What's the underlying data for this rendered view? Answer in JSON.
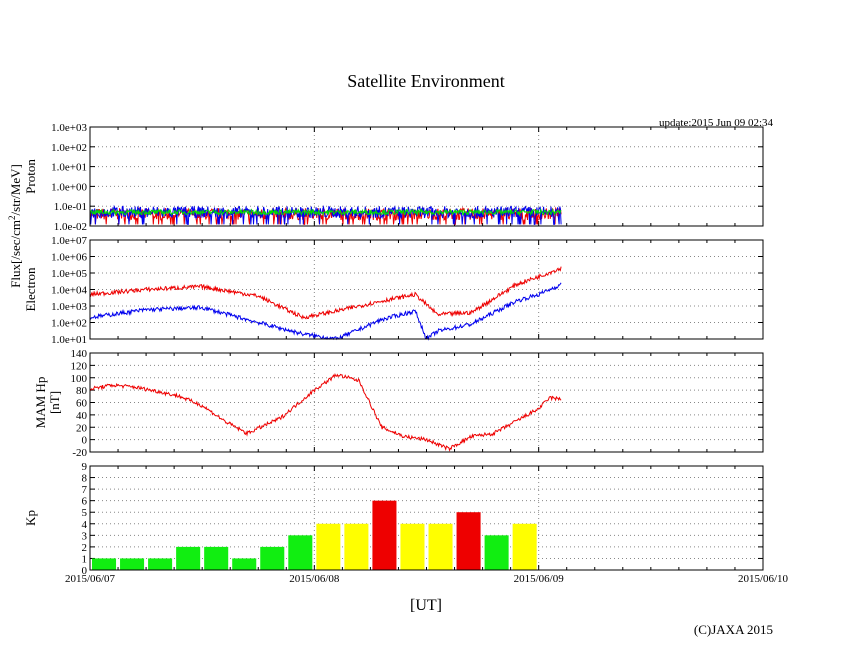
{
  "title": "Satellite Environment",
  "update": "update:2015 Jun 09 02:34",
  "xlabel": "[UT]",
  "copyright": "(C)JAXA 2015",
  "flux_label_parts": {
    "prefix": "Flux[/sec/cm",
    "sup": "2",
    "suffix": "/str/MeV]"
  },
  "x_ticks": [
    "2015/06/07",
    "2015/06/08",
    "2015/06/09",
    "2015/06/10"
  ],
  "colors": {
    "red": "#ee0000",
    "blue": "#0000ee",
    "green": "#00dd00",
    "green_bar": "#11ee11",
    "yellow": "#ffff00",
    "red_bar": "#ee0000",
    "grid": "#888888"
  },
  "chart_data": [
    {
      "id": "proton",
      "type": "line",
      "ylabel": "Proton",
      "yscale": "log",
      "ylim": [
        0.01,
        1000
      ],
      "y_ticks": [
        "1.0e-02",
        "1.0e-01",
        "1.0e+00",
        "1.0e+01",
        "1.0e+02",
        "1.0e+03"
      ],
      "xlim_days": [
        0,
        3
      ],
      "series": [
        {
          "color": "red",
          "approx_level": 0.04,
          "x_end_days": 2.1
        },
        {
          "color": "blue",
          "approx_level": 0.05,
          "x_end_days": 2.1
        },
        {
          "color": "green",
          "approx_level": 0.05,
          "x_end_days": 2.1
        }
      ]
    },
    {
      "id": "electron",
      "type": "line",
      "ylabel": "Electron",
      "yscale": "log",
      "ylim": [
        10,
        10000000
      ],
      "y_ticks": [
        "1.0e+01",
        "1.0e+02",
        "1.0e+03",
        "1.0e+04",
        "1.0e+05",
        "1.0e+06",
        "1.0e+07"
      ],
      "series": [
        {
          "color": "red",
          "x_days": [
            0,
            0.25,
            0.5,
            0.75,
            0.95,
            1.1,
            1.3,
            1.45,
            1.55,
            1.7,
            1.9,
            2.0,
            2.1
          ],
          "y": [
            5000,
            10000,
            15000,
            4000,
            200,
            500,
            2000,
            5000,
            300,
            400,
            20000,
            60000,
            200000
          ]
        },
        {
          "color": "blue",
          "x_days": [
            0,
            0.25,
            0.5,
            0.75,
            0.95,
            1.1,
            1.3,
            1.45,
            1.5,
            1.55,
            1.7,
            1.9,
            2.0,
            2.1
          ],
          "y": [
            200,
            600,
            800,
            100,
            20,
            10,
            150,
            500,
            10,
            30,
            80,
            2000,
            5000,
            20000
          ]
        }
      ]
    },
    {
      "id": "hp",
      "type": "line",
      "ylabel": "MAM Hp",
      "ylabel2": "[nT]",
      "ylim": [
        -20,
        140
      ],
      "y_ticks": [
        "-20",
        "0",
        "20",
        "40",
        "60",
        "80",
        "100",
        "120",
        "140"
      ],
      "series": [
        {
          "color": "red",
          "x_days": [
            0,
            0.1,
            0.2,
            0.3,
            0.4,
            0.5,
            0.6,
            0.7,
            0.85,
            1.0,
            1.1,
            1.2,
            1.3,
            1.4,
            1.5,
            1.6,
            1.7,
            1.8,
            1.9,
            2.0,
            2.05,
            2.1
          ],
          "y": [
            82,
            88,
            85,
            78,
            70,
            55,
            30,
            10,
            35,
            80,
            105,
            95,
            20,
            5,
            0,
            -15,
            5,
            10,
            30,
            50,
            68,
            65
          ]
        }
      ]
    },
    {
      "id": "kp",
      "type": "bar",
      "ylabel": "Kp",
      "ylim": [
        0,
        9
      ],
      "y_ticks": [
        "0",
        "1",
        "2",
        "3",
        "4",
        "5",
        "6",
        "7",
        "8",
        "9"
      ],
      "bar_interval_hours": 3,
      "values": [
        1,
        1,
        1,
        2,
        2,
        1,
        2,
        3,
        4,
        4,
        6,
        4,
        4,
        5,
        3,
        4
      ],
      "bar_colors": [
        "green_bar",
        "green_bar",
        "green_bar",
        "green_bar",
        "green_bar",
        "green_bar",
        "green_bar",
        "green_bar",
        "yellow",
        "yellow",
        "red_bar",
        "yellow",
        "yellow",
        "red_bar",
        "green_bar",
        "yellow"
      ]
    }
  ]
}
